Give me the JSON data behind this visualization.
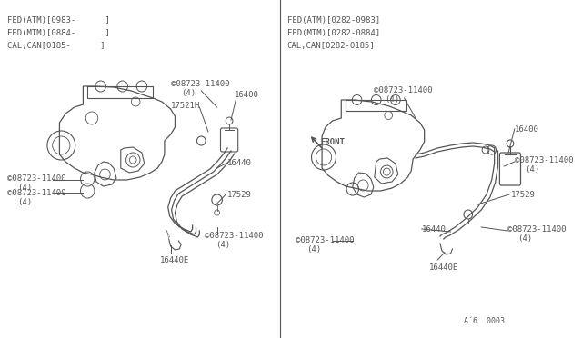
{
  "bg_color": "#ffffff",
  "line_color": "#555555",
  "text_color": "#555555",
  "fig_width": 6.4,
  "fig_height": 3.72,
  "left_header": [
    "FED(ATM)[0983-      ]",
    "FED(MTM)[0884-      ]",
    "CAL,CAN[0185-      ]"
  ],
  "right_header": [
    "FED(ATM)[0282-0983]",
    "FED(MTM)[0282-0884]",
    "CAL,CAN[0282-0185]"
  ],
  "footer": "A´6  0003"
}
